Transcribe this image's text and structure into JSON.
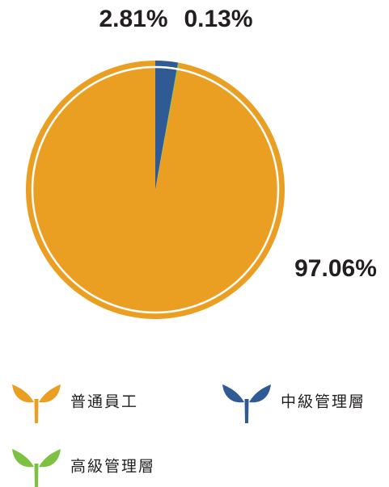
{
  "chart_data": {
    "type": "pie",
    "categories": [
      "普通員工",
      "中級管理層",
      "高級管理層"
    ],
    "values": [
      97.06,
      2.81,
      0.13
    ],
    "value_labels": [
      "97.06%",
      "2.81%",
      "0.13%"
    ],
    "colors": [
      "#eb9f22",
      "#2f5a94",
      "#7cc142"
    ]
  }
}
